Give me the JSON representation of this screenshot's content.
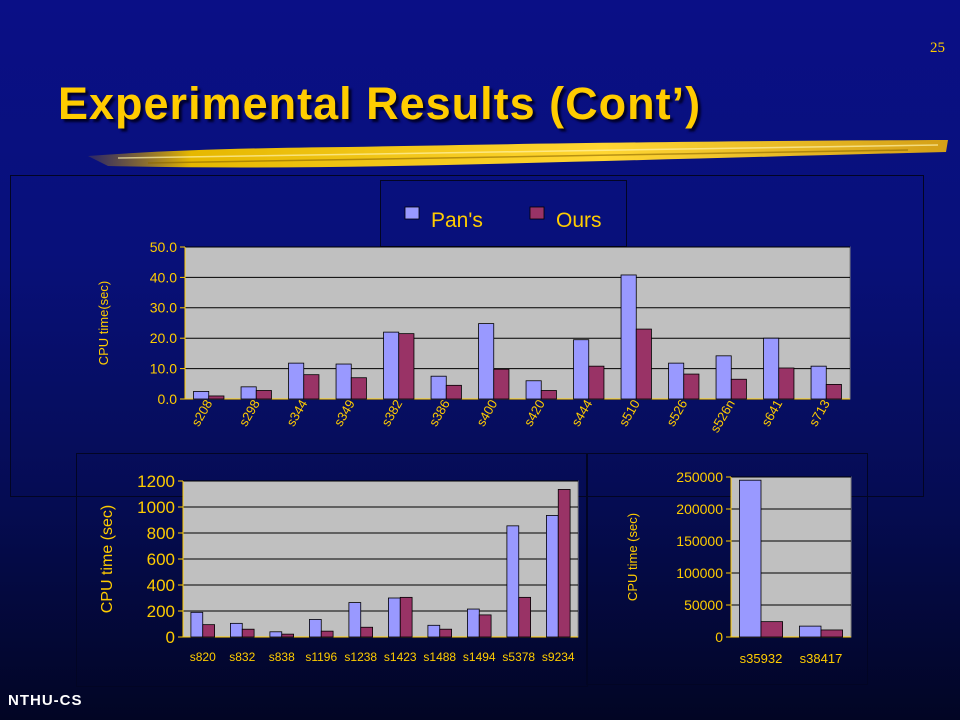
{
  "slide": {
    "number": "25",
    "title": "Experimental Results (Cont’)",
    "footer": "NTHU-CS"
  },
  "colors": {
    "title": "#ffcc00",
    "axis_text": "#ffcc00",
    "pans_bar": "#9999ff",
    "ours_bar": "#993366",
    "plot_bg": "#c0c0c0"
  },
  "chart_data": [
    {
      "type": "bar",
      "ylabel": "CPU time(sec)",
      "ylim": [
        0,
        50
      ],
      "yticks": [
        "0.0",
        "10.0",
        "20.0",
        "30.0",
        "40.0",
        "50.0"
      ],
      "legend": {
        "placement": "top",
        "entries": [
          "Pan's",
          "Ours"
        ]
      },
      "categories": [
        "s208",
        "s298",
        "s344",
        "s349",
        "s382",
        "s386",
        "s400",
        "s420",
        "s444",
        "s510",
        "s526",
        "s526n",
        "s641",
        "s713"
      ],
      "series": [
        {
          "name": "Pan's",
          "values": [
            2.5,
            4.0,
            11.8,
            11.5,
            22.0,
            7.5,
            24.8,
            6.0,
            19.5,
            40.8,
            11.8,
            14.2,
            20.0,
            10.8
          ]
        },
        {
          "name": "Ours",
          "values": [
            1.0,
            2.8,
            8.0,
            7.0,
            21.5,
            4.5,
            9.8,
            2.8,
            10.8,
            23.0,
            8.2,
            6.5,
            10.2,
            4.8
          ]
        }
      ]
    },
    {
      "type": "bar",
      "ylabel": "CPU time (sec)",
      "ylim": [
        0,
        1200
      ],
      "yticks": [
        "0",
        "200",
        "400",
        "600",
        "800",
        "1000",
        "1200"
      ],
      "categories": [
        "s820",
        "s832",
        "s838",
        "s1196",
        "s1238",
        "s1423",
        "s1488",
        "s1494",
        "s5378",
        "s9234"
      ],
      "series": [
        {
          "name": "Pan's",
          "values": [
            190,
            105,
            40,
            135,
            265,
            300,
            90,
            215,
            855,
            935
          ]
        },
        {
          "name": "Ours",
          "values": [
            95,
            60,
            22,
            45,
            75,
            305,
            60,
            170,
            305,
            1135
          ]
        }
      ]
    },
    {
      "type": "bar",
      "ylabel": "CPU time (sec)",
      "ylim": [
        0,
        250000
      ],
      "yticks": [
        "0",
        "50000",
        "100000",
        "150000",
        "200000",
        "250000"
      ],
      "categories": [
        "s35932",
        "s38417"
      ],
      "series": [
        {
          "name": "Pan's",
          "values": [
            245000,
            17000
          ]
        },
        {
          "name": "Ours",
          "values": [
            24000,
            11000
          ]
        }
      ]
    }
  ]
}
